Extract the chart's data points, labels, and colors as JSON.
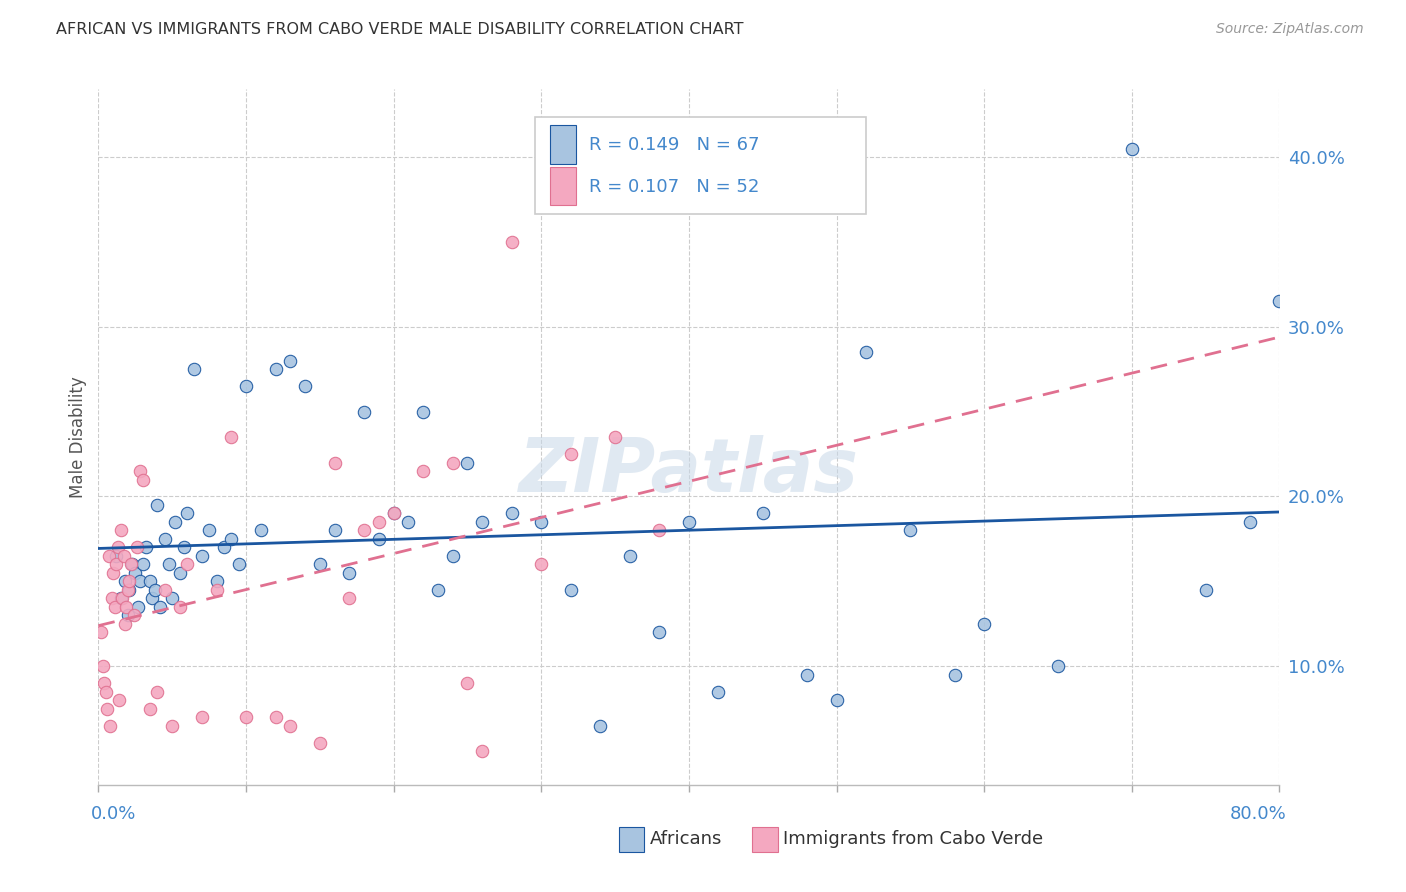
{
  "title": "AFRICAN VS IMMIGRANTS FROM CABO VERDE MALE DISABILITY CORRELATION CHART",
  "source": "Source: ZipAtlas.com",
  "ylabel": "Male Disability",
  "watermark": "ZIPatlas",
  "africans_R": 0.149,
  "africans_N": 67,
  "caboverde_R": 0.107,
  "caboverde_N": 52,
  "xlim": [
    0.0,
    80.0
  ],
  "ylim": [
    3.0,
    44.0
  ],
  "right_yticks": [
    10.0,
    20.0,
    30.0,
    40.0
  ],
  "scatter_color_africans": "#a8c4e0",
  "scatter_color_caboverde": "#f4a8c0",
  "line_color_africans": "#1a56a0",
  "line_color_caboverde": "#e07090",
  "grid_color": "#cccccc",
  "background_color": "#ffffff",
  "africans_x": [
    1.2,
    1.5,
    1.8,
    2.0,
    2.1,
    2.3,
    2.5,
    2.7,
    2.8,
    3.0,
    3.2,
    3.5,
    3.6,
    3.8,
    4.0,
    4.2,
    4.5,
    4.8,
    5.0,
    5.2,
    5.5,
    5.8,
    6.0,
    6.5,
    7.0,
    7.5,
    8.0,
    8.5,
    9.0,
    9.5,
    10.0,
    11.0,
    12.0,
    13.0,
    14.0,
    15.0,
    16.0,
    17.0,
    18.0,
    19.0,
    20.0,
    21.0,
    22.0,
    23.0,
    24.0,
    25.0,
    26.0,
    28.0,
    30.0,
    32.0,
    34.0,
    36.0,
    38.0,
    40.0,
    42.0,
    45.0,
    48.0,
    50.0,
    52.0,
    55.0,
    58.0,
    60.0,
    65.0,
    70.0,
    75.0,
    78.0,
    80.0
  ],
  "africans_y": [
    16.5,
    14.0,
    15.0,
    13.0,
    14.5,
    16.0,
    15.5,
    13.5,
    15.0,
    16.0,
    17.0,
    15.0,
    14.0,
    14.5,
    19.5,
    13.5,
    17.5,
    16.0,
    14.0,
    18.5,
    15.5,
    17.0,
    19.0,
    27.5,
    16.5,
    18.0,
    15.0,
    17.0,
    17.5,
    16.0,
    26.5,
    18.0,
    27.5,
    28.0,
    26.5,
    16.0,
    18.0,
    15.5,
    25.0,
    17.5,
    19.0,
    18.5,
    25.0,
    14.5,
    16.5,
    22.0,
    18.5,
    19.0,
    18.5,
    14.5,
    6.5,
    16.5,
    12.0,
    18.5,
    8.5,
    19.0,
    9.5,
    8.0,
    28.5,
    18.0,
    9.5,
    12.5,
    10.0,
    40.5,
    14.5,
    18.5,
    31.5
  ],
  "caboverde_x": [
    0.2,
    0.3,
    0.4,
    0.5,
    0.6,
    0.7,
    0.8,
    0.9,
    1.0,
    1.1,
    1.2,
    1.3,
    1.4,
    1.5,
    1.6,
    1.7,
    1.8,
    1.9,
    2.0,
    2.1,
    2.2,
    2.4,
    2.6,
    2.8,
    3.0,
    3.5,
    4.0,
    4.5,
    5.0,
    5.5,
    6.0,
    7.0,
    8.0,
    9.0,
    10.0,
    12.0,
    13.0,
    15.0,
    16.0,
    17.0,
    18.0,
    19.0,
    20.0,
    22.0,
    24.0,
    25.0,
    26.0,
    28.0,
    30.0,
    32.0,
    35.0,
    38.0
  ],
  "caboverde_y": [
    12.0,
    10.0,
    9.0,
    8.5,
    7.5,
    16.5,
    6.5,
    14.0,
    15.5,
    13.5,
    16.0,
    17.0,
    8.0,
    18.0,
    14.0,
    16.5,
    12.5,
    13.5,
    14.5,
    15.0,
    16.0,
    13.0,
    17.0,
    21.5,
    21.0,
    7.5,
    8.5,
    14.5,
    6.5,
    13.5,
    16.0,
    7.0,
    14.5,
    23.5,
    7.0,
    7.0,
    6.5,
    5.5,
    22.0,
    14.0,
    18.0,
    18.5,
    19.0,
    21.5,
    22.0,
    9.0,
    5.0,
    35.0,
    16.0,
    22.5,
    23.5,
    18.0
  ]
}
